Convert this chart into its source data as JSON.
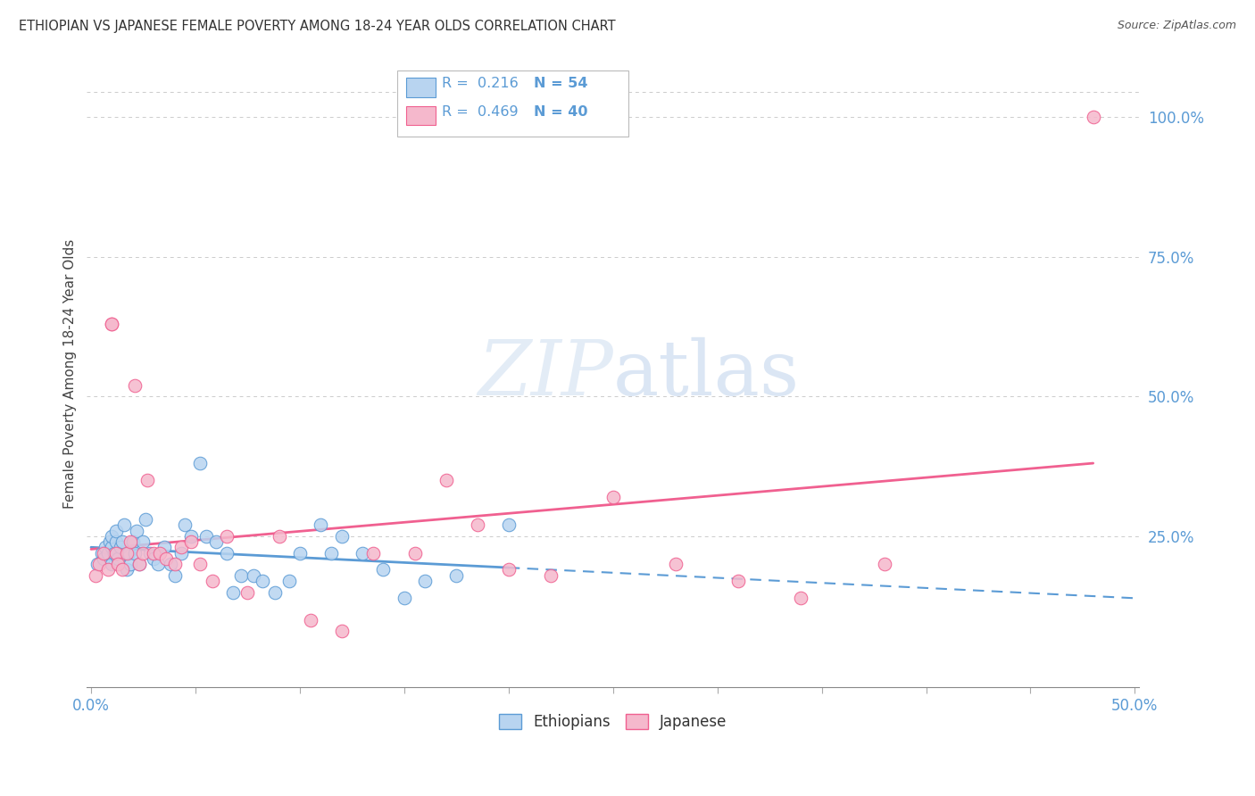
{
  "title": "ETHIOPIAN VS JAPANESE FEMALE POVERTY AMONG 18-24 YEAR OLDS CORRELATION CHART",
  "source": "Source: ZipAtlas.com",
  "ylabel": "Female Poverty Among 18-24 Year Olds",
  "xlim": [
    -0.002,
    0.502
  ],
  "ylim": [
    -0.02,
    1.1
  ],
  "yticks_right": [
    0.25,
    0.5,
    0.75,
    1.0
  ],
  "ytick_right_labels": [
    "25.0%",
    "50.0%",
    "75.0%",
    "100.0%"
  ],
  "background_color": "#ffffff",
  "grid_color": "#cccccc",
  "ethiopian_color": "#b8d4f0",
  "japanese_color": "#f5b8cc",
  "ethiopian_line_color": "#5b9bd5",
  "japanese_line_color": "#f06090",
  "watermark": "ZIPatlas",
  "eth_x": [
    0.003,
    0.005,
    0.006,
    0.007,
    0.008,
    0.009,
    0.01,
    0.01,
    0.01,
    0.011,
    0.012,
    0.012,
    0.013,
    0.014,
    0.015,
    0.016,
    0.017,
    0.018,
    0.019,
    0.02,
    0.021,
    0.022,
    0.023,
    0.025,
    0.026,
    0.028,
    0.03,
    0.032,
    0.035,
    0.038,
    0.04,
    0.043,
    0.045,
    0.048,
    0.052,
    0.055,
    0.06,
    0.065,
    0.068,
    0.072,
    0.078,
    0.082,
    0.088,
    0.095,
    0.1,
    0.11,
    0.115,
    0.12,
    0.13,
    0.14,
    0.15,
    0.16,
    0.175,
    0.2
  ],
  "eth_y": [
    0.2,
    0.22,
    0.21,
    0.23,
    0.22,
    0.24,
    0.2,
    0.23,
    0.25,
    0.22,
    0.24,
    0.26,
    0.21,
    0.23,
    0.24,
    0.27,
    0.19,
    0.22,
    0.2,
    0.24,
    0.22,
    0.26,
    0.2,
    0.24,
    0.28,
    0.22,
    0.21,
    0.2,
    0.23,
    0.2,
    0.18,
    0.22,
    0.27,
    0.25,
    0.38,
    0.25,
    0.24,
    0.22,
    0.15,
    0.18,
    0.18,
    0.17,
    0.15,
    0.17,
    0.22,
    0.27,
    0.22,
    0.25,
    0.22,
    0.19,
    0.14,
    0.17,
    0.18,
    0.27
  ],
  "jap_x": [
    0.002,
    0.004,
    0.006,
    0.008,
    0.01,
    0.01,
    0.012,
    0.013,
    0.015,
    0.017,
    0.019,
    0.021,
    0.023,
    0.025,
    0.027,
    0.03,
    0.033,
    0.036,
    0.04,
    0.043,
    0.048,
    0.052,
    0.058,
    0.065,
    0.075,
    0.09,
    0.105,
    0.12,
    0.135,
    0.155,
    0.17,
    0.185,
    0.2,
    0.22,
    0.25,
    0.28,
    0.31,
    0.34,
    0.38,
    0.48
  ],
  "jap_y": [
    0.18,
    0.2,
    0.22,
    0.19,
    0.63,
    0.63,
    0.22,
    0.2,
    0.19,
    0.22,
    0.24,
    0.52,
    0.2,
    0.22,
    0.35,
    0.22,
    0.22,
    0.21,
    0.2,
    0.23,
    0.24,
    0.2,
    0.17,
    0.25,
    0.15,
    0.25,
    0.1,
    0.08,
    0.22,
    0.22,
    0.35,
    0.27,
    0.19,
    0.18,
    0.32,
    0.2,
    0.17,
    0.14,
    0.2,
    1.0
  ]
}
